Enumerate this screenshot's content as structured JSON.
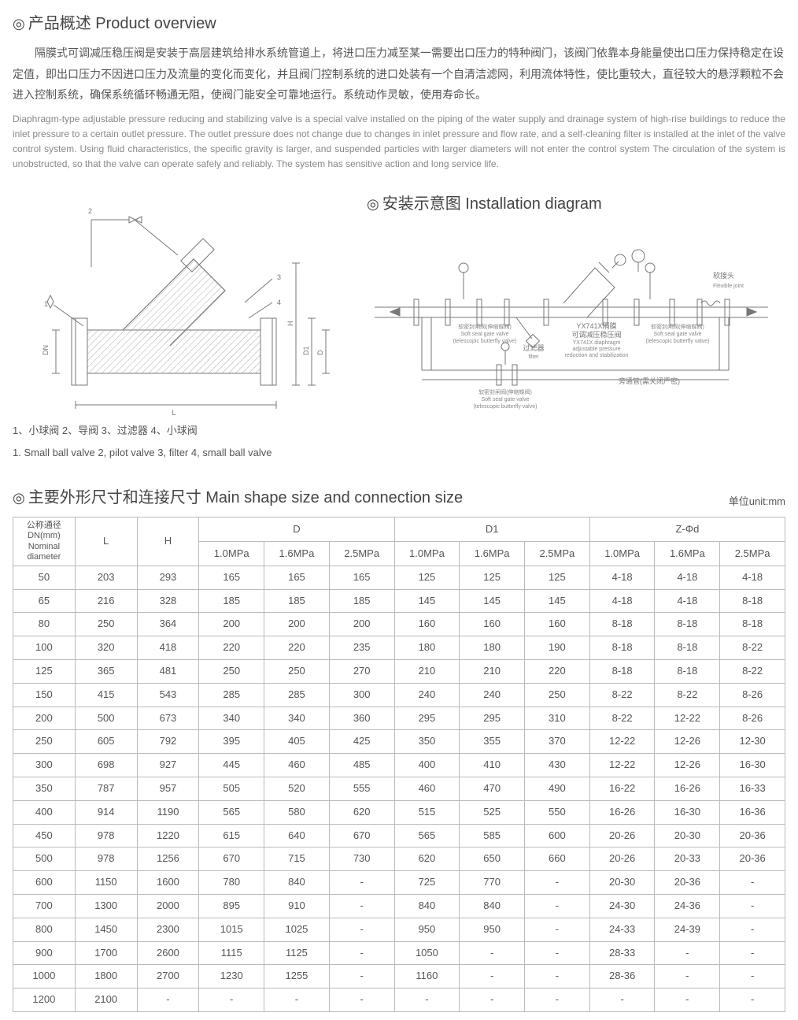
{
  "overview": {
    "title": "产品概述 Product overview",
    "para_cn": "隔膜式可调减压稳压阀是安装于高层建筑给排水系统管道上，将进口压力减至某一需要出口压力的特种阀门，该阀门依靠本身能量使出口压力保持稳定在设定值，即出口压力不因进口压力及流量的变化而变化，并且阀门控制系统的进口处装有一个自清洁滤网，利用流体特性，使比重较大，直径较大的悬浮颗粒不会进入控制系统，确保系统循环畅通无阻，使阀门能安全可靠地运行。系统动作灵敏，使用寿命长。",
    "para_en": "Diaphragm-type adjustable pressure reducing and stabilizing valve is a special valve installed on the piping of the water supply and drainage system of high-rise buildings to reduce the inlet pressure to a certain outlet pressure. The outlet pressure does not change due to changes in inlet pressure and flow rate, and a self-cleaning filter is installed at the inlet of the valve control system. Using fluid characteristics, the specific gravity is larger, and suspended particles with larger diameters will not enter the control system The circulation of the system is unobstructed, so that the valve can operate safely and reliably. The system has sensitive action and long service life."
  },
  "left_diagram": {
    "caption_cn": "1、小球阀 2、导阀 3、过滤器 4、小球阀",
    "caption_en": "1. Small ball valve 2, pilot valve 3, filter 4, small ball valve",
    "labels": {
      "L": "L",
      "H": "H",
      "D": "D",
      "D1": "D1",
      "DN": "DN",
      "n1": "1",
      "n2": "2",
      "n3": "3",
      "n4": "4"
    }
  },
  "install": {
    "title": "安装示意图 Installation diagram",
    "labels": {
      "flex_cn": "软接头",
      "flex_en": "Flexible joint",
      "soft1_cn": "软密封闸阀(伸缩蝶阀)",
      "soft1_en": "Soft seal gate valve",
      "soft1_en2": "(telescopic butterfly valve)",
      "filter_cn": "过滤器",
      "filter_en": "filter",
      "main_cn1": "YX741X隔膜",
      "main_cn2": "可调减压稳压阀",
      "main_en1": "YX741X diaphragm",
      "main_en2": "adjustable pressure",
      "main_en3": "reduction and stabilization",
      "soft2_cn": "软密封闸阀(伸缩蝶阀)",
      "soft2_en": "Soft seal gate valve",
      "soft2_en2": "(telescopic butterfly valve)",
      "bypass_cn": "旁通管(需关闭严密)",
      "bottom_cn": "软密封闸阀(伸缩蝶阀)",
      "bottom_en": "Soft seal gate valve",
      "bottom_en2": "(telescopic butterfly valve)"
    }
  },
  "table": {
    "title": "主要外形尺寸和连接尺寸 Main shape size and connection size",
    "unit": "单位unit:mm",
    "headers": {
      "dn_cn": "公称通径",
      "dn_mm": "DN(mm)",
      "dn_en1": "Nominal",
      "dn_en2": "diameter",
      "L": "L",
      "H": "H",
      "D": "D",
      "D1": "D1",
      "Z": "Z-Φd",
      "p10": "1.0MPa",
      "p16": "1.6MPa",
      "p25": "2.5MPa"
    },
    "rows": [
      [
        "50",
        "203",
        "293",
        "165",
        "165",
        "165",
        "125",
        "125",
        "125",
        "4-18",
        "4-18",
        "4-18"
      ],
      [
        "65",
        "216",
        "328",
        "185",
        "185",
        "185",
        "145",
        "145",
        "145",
        "4-18",
        "4-18",
        "8-18"
      ],
      [
        "80",
        "250",
        "364",
        "200",
        "200",
        "200",
        "160",
        "160",
        "160",
        "8-18",
        "8-18",
        "8-18"
      ],
      [
        "100",
        "320",
        "418",
        "220",
        "220",
        "235",
        "180",
        "180",
        "190",
        "8-18",
        "8-18",
        "8-22"
      ],
      [
        "125",
        "365",
        "481",
        "250",
        "250",
        "270",
        "210",
        "210",
        "220",
        "8-18",
        "8-18",
        "8-22"
      ],
      [
        "150",
        "415",
        "543",
        "285",
        "285",
        "300",
        "240",
        "240",
        "250",
        "8-22",
        "8-22",
        "8-26"
      ],
      [
        "200",
        "500",
        "673",
        "340",
        "340",
        "360",
        "295",
        "295",
        "310",
        "8-22",
        "12-22",
        "8-26"
      ],
      [
        "250",
        "605",
        "792",
        "395",
        "405",
        "425",
        "350",
        "355",
        "370",
        "12-22",
        "12-26",
        "12-30"
      ],
      [
        "300",
        "698",
        "927",
        "445",
        "460",
        "485",
        "400",
        "410",
        "430",
        "12-22",
        "12-26",
        "16-30"
      ],
      [
        "350",
        "787",
        "957",
        "505",
        "520",
        "555",
        "460",
        "470",
        "490",
        "16-22",
        "16-26",
        "16-33"
      ],
      [
        "400",
        "914",
        "1190",
        "565",
        "580",
        "620",
        "515",
        "525",
        "550",
        "16-26",
        "16-30",
        "16-36"
      ],
      [
        "450",
        "978",
        "1220",
        "615",
        "640",
        "670",
        "565",
        "585",
        "600",
        "20-26",
        "20-30",
        "20-36"
      ],
      [
        "500",
        "978",
        "1256",
        "670",
        "715",
        "730",
        "620",
        "650",
        "660",
        "20-26",
        "20-33",
        "20-36"
      ],
      [
        "600",
        "1150",
        "1600",
        "780",
        "840",
        "-",
        "725",
        "770",
        "-",
        "20-30",
        "20-36",
        "-"
      ],
      [
        "700",
        "1300",
        "2000",
        "895",
        "910",
        "-",
        "840",
        "840",
        "-",
        "24-30",
        "24-36",
        "-"
      ],
      [
        "800",
        "1450",
        "2300",
        "1015",
        "1025",
        "-",
        "950",
        "950",
        "-",
        "24-33",
        "24-39",
        "-"
      ],
      [
        "900",
        "1700",
        "2600",
        "1115",
        "1125",
        "-",
        "1050",
        "-",
        "-",
        "28-33",
        "-",
        "-"
      ],
      [
        "1000",
        "1800",
        "2700",
        "1230",
        "1255",
        "-",
        "1160",
        "-",
        "-",
        "28-36",
        "-",
        "-"
      ],
      [
        "1200",
        "2100",
        "-",
        "-",
        "-",
        "-",
        "-",
        "-",
        "-",
        "-",
        "-",
        "-"
      ]
    ],
    "col_widths_pct": [
      8,
      8,
      8,
      8.4,
      8.4,
      8.4,
      8.4,
      8.4,
      8.4,
      8.4,
      8.4,
      8.4
    ]
  },
  "colors": {
    "text": "#555555",
    "light_text": "#888888",
    "border": "#bbbbbb",
    "stroke": "#777777",
    "hatch": "#aaaaaa"
  }
}
